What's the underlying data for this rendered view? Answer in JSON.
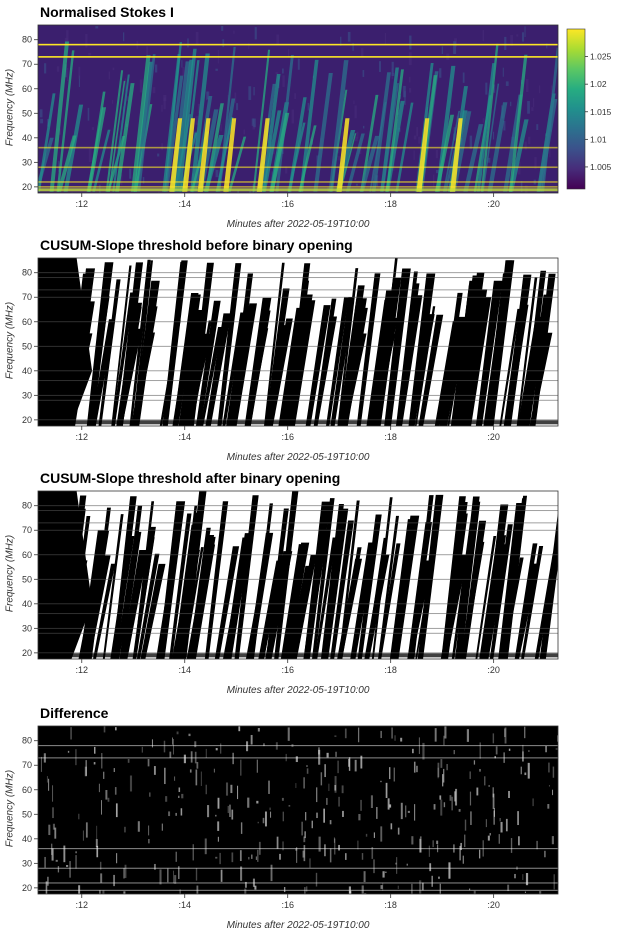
{
  "chart_data": [
    {
      "type": "heatmap",
      "title": "Normalised Stokes I",
      "xlabel": "Minutes after 2022-05-19T10:00",
      "ylabel": "Frequency (MHz)",
      "xlim": [
        11.15,
        21.25
      ],
      "ylim": [
        17.5,
        86
      ],
      "xticks": [
        12,
        14,
        16,
        18,
        20
      ],
      "xtick_labels": [
        ":12",
        ":14",
        ":16",
        ":18",
        ":20"
      ],
      "yticks": [
        20,
        30,
        40,
        50,
        60,
        70,
        80
      ],
      "ytick_labels": [
        "20",
        "30",
        "40",
        "50",
        "60",
        "70",
        "80"
      ],
      "colormap": "viridis",
      "colorbar": {
        "range": [
          1.001,
          1.03
        ],
        "ticks": [
          1.005,
          1.01,
          1.015,
          1.02,
          1.025
        ],
        "tick_labels": [
          "1.005",
          "1.01",
          "1.015",
          "1.02",
          "1.025"
        ]
      },
      "rfi_lines_mhz": [
        78,
        73,
        36,
        28,
        22,
        20
      ]
    },
    {
      "type": "heatmap",
      "title": "CUSUM-Slope threshold before binary opening",
      "xlabel": "Minutes after 2022-05-19T10:00",
      "ylabel": "Frequency (MHz)",
      "xlim": [
        11.15,
        21.25
      ],
      "ylim": [
        17.5,
        86
      ],
      "xticks": [
        12,
        14,
        16,
        18,
        20
      ],
      "xtick_labels": [
        ":12",
        ":14",
        ":16",
        ":18",
        ":20"
      ],
      "yticks": [
        20,
        30,
        40,
        50,
        60,
        70,
        80
      ],
      "ytick_labels": [
        "20",
        "30",
        "40",
        "50",
        "60",
        "70",
        "80"
      ],
      "colormap": "binary"
    },
    {
      "type": "heatmap",
      "title": "CUSUM-Slope threshold after binary opening",
      "xlabel": "Minutes after 2022-05-19T10:00",
      "ylabel": "Frequency (MHz)",
      "xlim": [
        11.15,
        21.25
      ],
      "ylim": [
        17.5,
        86
      ],
      "xticks": [
        12,
        14,
        16,
        18,
        20
      ],
      "xtick_labels": [
        ":12",
        ":14",
        ":16",
        ":18",
        ":20"
      ],
      "yticks": [
        20,
        30,
        40,
        50,
        60,
        70,
        80
      ],
      "ytick_labels": [
        "20",
        "30",
        "40",
        "50",
        "60",
        "70",
        "80"
      ],
      "colormap": "binary"
    },
    {
      "type": "heatmap",
      "title": "Difference",
      "xlabel": "Minutes after 2022-05-19T10:00",
      "ylabel": "Frequency (MHz)",
      "xlim": [
        11.15,
        21.25
      ],
      "ylim": [
        17.5,
        86
      ],
      "xticks": [
        12,
        14,
        16,
        18,
        20
      ],
      "xtick_labels": [
        ":12",
        ":14",
        ":16",
        ":18",
        ":20"
      ],
      "yticks": [
        20,
        30,
        40,
        50,
        60,
        70,
        80
      ],
      "ytick_labels": [
        "20",
        "30",
        "40",
        "50",
        "60",
        "70",
        "80"
      ],
      "colormap": "binary"
    }
  ],
  "burst_times_min": [
    11.3,
    11.7,
    12.1,
    12.6,
    13.0,
    13.7,
    14.0,
    14.3,
    14.8,
    15.4,
    15.8,
    16.2,
    16.7,
    17.1,
    17.6,
    18.0,
    18.5,
    19.0,
    19.3,
    19.8,
    20.3,
    20.8
  ]
}
